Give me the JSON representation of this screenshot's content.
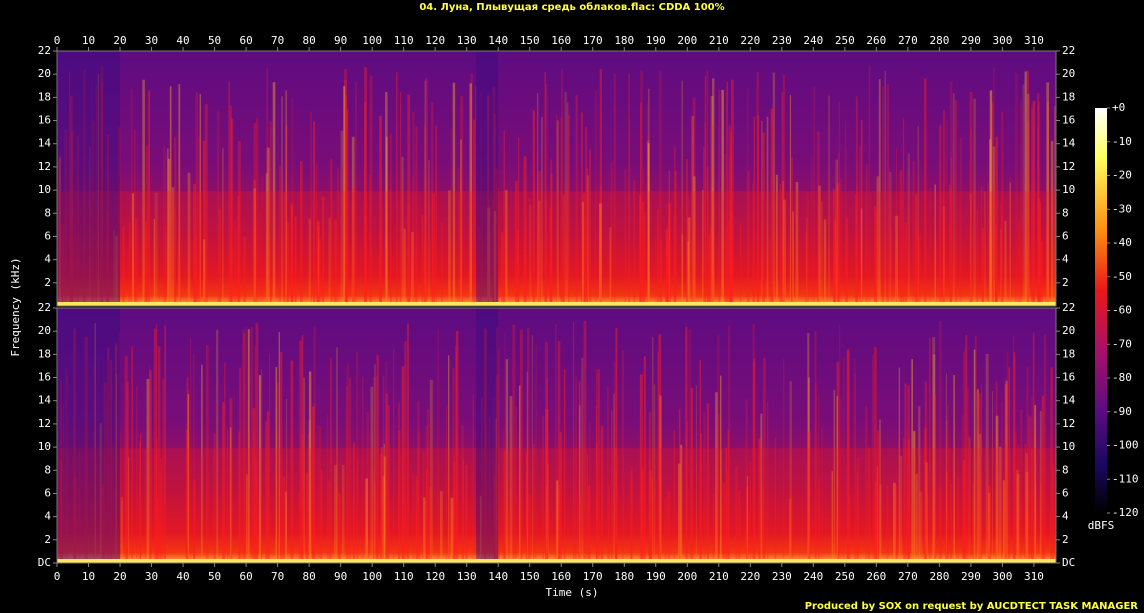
{
  "chart_data": {
    "type": "spectrogram",
    "title": "04. Луна, Плывущая средь облаков.flac: CDDA 100%",
    "x_label": "Time (s)",
    "y_label": "Frequency (kHz)",
    "xlim": [
      0,
      317
    ],
    "xticks": [
      0,
      10,
      20,
      30,
      40,
      50,
      60,
      70,
      80,
      90,
      100,
      110,
      120,
      130,
      140,
      150,
      160,
      170,
      180,
      190,
      200,
      210,
      220,
      230,
      240,
      250,
      260,
      270,
      280,
      290,
      300,
      310
    ],
    "panels": [
      {
        "ylim": [
          0,
          22
        ],
        "yticks": [
          2,
          4,
          6,
          8,
          10,
          12,
          14,
          16,
          18,
          20,
          22
        ]
      },
      {
        "ylim": [
          0,
          22
        ],
        "yticks": [
          {
            "value": 0,
            "label": "DC"
          },
          2,
          4,
          6,
          8,
          10,
          12,
          14,
          16,
          18,
          20,
          22
        ]
      }
    ],
    "colorbar": {
      "label": "dBFS",
      "lim": [
        -120,
        0
      ],
      "ticks": [
        {
          "value": 0,
          "label": "+0"
        },
        -10,
        -20,
        -30,
        -40,
        -50,
        -60,
        -70,
        -80,
        -90,
        -100,
        -110,
        -120
      ]
    }
  },
  "footer": "Produced by SOX on request by AUCDTECT TASK MANAGER"
}
